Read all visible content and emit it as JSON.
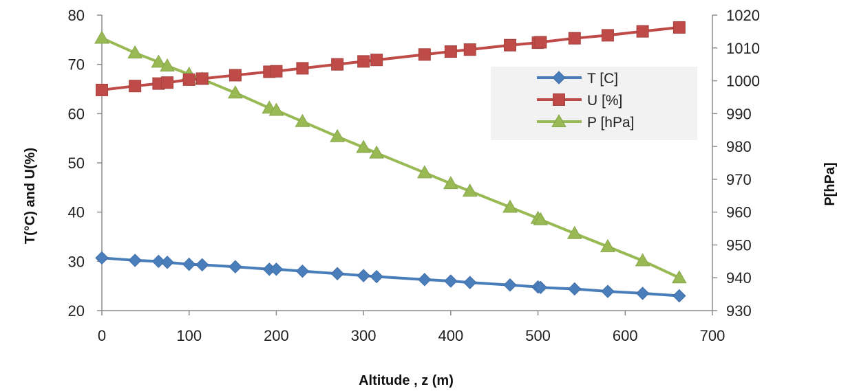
{
  "chart_data": {
    "type": "line",
    "title": "",
    "xlabel": "Altitude , z (m)",
    "ylabel": "T(°C) and U(%)",
    "y2label": "P[hPa]",
    "xlim": [
      0,
      700
    ],
    "ylim": [
      20,
      80
    ],
    "y2lim": [
      930,
      1020
    ],
    "x_ticks": [
      "0",
      "100",
      "200",
      "300",
      "400",
      "500",
      "600",
      "700"
    ],
    "y_ticks": [
      "20",
      "30",
      "40",
      "50",
      "60",
      "70",
      "80"
    ],
    "y2_ticks": [
      "930",
      "940",
      "950",
      "960",
      "970",
      "980",
      "990",
      "1000",
      "1010",
      "1020"
    ],
    "grid": false,
    "legend_position": "top-right",
    "x": [
      0,
      38,
      65,
      75,
      100,
      115,
      153,
      192,
      200,
      230,
      270,
      300,
      315,
      370,
      400,
      422,
      468,
      500,
      503,
      542,
      580,
      620,
      662
    ],
    "series": [
      {
        "name": "T [C]",
        "axis": "left",
        "marker": "diamond",
        "color": "#4a7ebb",
        "values": [
          30.7,
          30.2,
          30.0,
          29.8,
          29.4,
          29.3,
          28.9,
          28.4,
          28.4,
          28.0,
          27.5,
          27.1,
          26.9,
          26.3,
          26.0,
          25.7,
          25.2,
          24.8,
          24.7,
          24.4,
          23.9,
          23.5,
          23.0
        ]
      },
      {
        "name": "U [%]",
        "axis": "left",
        "marker": "square",
        "color": "#be4b48",
        "values": [
          64.8,
          65.6,
          66.1,
          66.3,
          66.9,
          67.1,
          67.8,
          68.5,
          68.6,
          69.2,
          70.0,
          70.6,
          70.9,
          72.0,
          72.6,
          73.0,
          73.9,
          74.4,
          74.5,
          75.3,
          75.9,
          76.7,
          77.5
        ]
      },
      {
        "name": "P [hPa]",
        "axis": "right",
        "marker": "triangle",
        "color": "#98b954",
        "values": [
          1013.0,
          1008.5,
          1005.7,
          1004.5,
          1002.0,
          1000.5,
          996.3,
          991.7,
          991.0,
          987.6,
          983.0,
          979.7,
          978.0,
          972.0,
          968.7,
          966.4,
          961.5,
          958.1,
          957.7,
          953.5,
          949.5,
          945.2,
          940.0
        ]
      }
    ]
  }
}
